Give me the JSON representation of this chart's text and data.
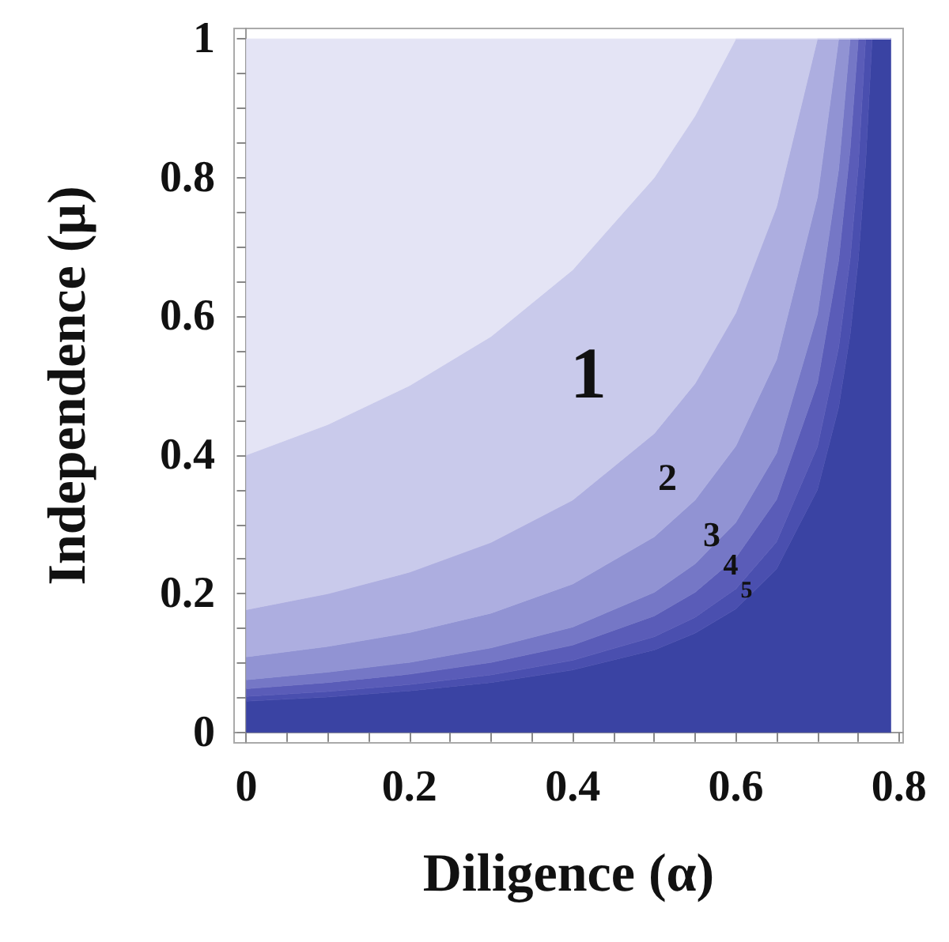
{
  "chart_data": {
    "type": "area",
    "xlabel": "Diligence (α)",
    "ylabel": "Independence (μ)",
    "xlim": [
      -0.015,
      0.805
    ],
    "ylim": [
      -0.015,
      1.015
    ],
    "xticks": [
      0,
      {
        "value": 0.05,
        "label": null
      },
      {
        "value": 0.1,
        "label": null
      },
      {
        "value": 0.15,
        "label": null
      },
      {
        "value": 0.2,
        "label": "0.2"
      },
      {
        "value": 0.25,
        "label": null
      },
      {
        "value": 0.3,
        "label": null
      },
      {
        "value": 0.35,
        "label": null
      },
      {
        "value": 0.4,
        "label": "0.4"
      },
      {
        "value": 0.45,
        "label": null
      },
      {
        "value": 0.5,
        "label": null
      },
      {
        "value": 0.55,
        "label": null
      },
      {
        "value": 0.6,
        "label": "0.6"
      },
      {
        "value": 0.65,
        "label": null
      },
      {
        "value": 0.7,
        "label": null
      },
      {
        "value": 0.75,
        "label": null
      },
      {
        "value": 0.8,
        "label": "0.8"
      }
    ],
    "yticks": [
      0,
      {
        "value": 0.05,
        "label": null
      },
      {
        "value": 0.1,
        "label": null
      },
      {
        "value": 0.15,
        "label": null
      },
      {
        "value": 0.2,
        "label": "0.2"
      },
      {
        "value": 0.25,
        "label": null
      },
      {
        "value": 0.3,
        "label": null
      },
      {
        "value": 0.35,
        "label": null
      },
      {
        "value": 0.4,
        "label": "0.4"
      },
      {
        "value": 0.45,
        "label": null
      },
      {
        "value": 0.5,
        "label": null
      },
      {
        "value": 0.55,
        "label": null
      },
      {
        "value": 0.6,
        "label": "0.6"
      },
      {
        "value": 0.65,
        "label": null
      },
      {
        "value": 0.7,
        "label": null
      },
      {
        "value": 0.75,
        "label": null
      },
      {
        "value": 0.8,
        "label": "0.8"
      },
      {
        "value": 0.85,
        "label": null
      },
      {
        "value": 0.9,
        "label": null
      },
      {
        "value": 0.95,
        "label": null
      },
      {
        "value": 1,
        "label": "1"
      }
    ],
    "stacked": true,
    "x": [
      0,
      0.1,
      0.2,
      0.3,
      0.4,
      0.5,
      0.55,
      0.6,
      0.65,
      0.7,
      0.726,
      0.74,
      0.75,
      0.759,
      0.767,
      0.79
    ],
    "series": [
      {
        "color": "#3a43a3",
        "values": [
          0.045,
          0.051,
          0.06,
          0.072,
          0.09,
          0.119,
          0.143,
          0.178,
          0.236,
          0.35,
          0.469,
          0.573,
          0.681,
          0.82,
          1,
          1
        ]
      },
      {
        "color": "#4a4faf",
        "values": [
          0.007,
          0.008,
          0.009,
          0.011,
          0.014,
          0.019,
          0.023,
          0.029,
          0.039,
          0.062,
          0.086,
          0.109,
          0.135,
          0.18,
          0,
          0
        ]
      },
      {
        "color": "#5a5cb8",
        "values": [
          0.011,
          0.013,
          0.015,
          0.018,
          0.022,
          0.03,
          0.036,
          0.045,
          0.061,
          0.092,
          0.126,
          0.158,
          0.184,
          0,
          0,
          0
        ]
      },
      {
        "color": "#7577c6",
        "values": [
          0.013,
          0.015,
          0.017,
          0.021,
          0.026,
          0.034,
          0.041,
          0.051,
          0.067,
          0.099,
          0.131,
          0.16,
          0,
          0,
          0,
          0
        ]
      },
      {
        "color": "#9193d3",
        "values": [
          0.033,
          0.037,
          0.043,
          0.05,
          0.062,
          0.08,
          0.092,
          0.11,
          0.135,
          0.169,
          0.188,
          0,
          0,
          0,
          0,
          0
        ]
      },
      {
        "color": "#adaee0",
        "values": [
          0.068,
          0.076,
          0.087,
          0.102,
          0.121,
          0.149,
          0.168,
          0.192,
          0.22,
          0.228,
          0,
          0,
          0,
          0,
          0,
          0
        ]
      },
      {
        "color": "#c9caeb",
        "values": [
          0.223,
          0.244,
          0.269,
          0.297,
          0.332,
          0.369,
          0.386,
          0.395,
          0.242,
          0,
          0,
          0,
          0,
          0,
          0,
          0
        ]
      },
      {
        "color": "#e4e4f5",
        "values": [
          0.6,
          0.556,
          0.5,
          0.429,
          0.333,
          0.2,
          0.111,
          0,
          0,
          0,
          0,
          0,
          0,
          0,
          0,
          0
        ]
      }
    ],
    "annotations": [
      "1",
      "2",
      "3",
      "4",
      "5"
    ]
  }
}
